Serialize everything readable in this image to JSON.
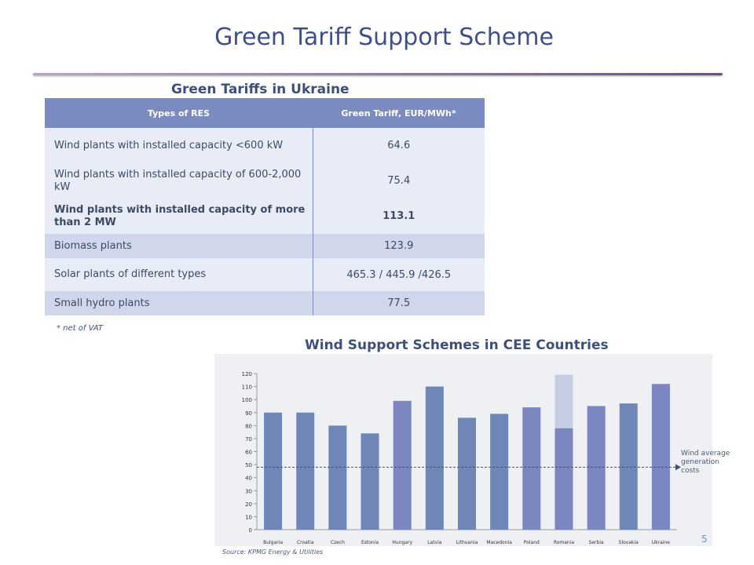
{
  "slide": {
    "title": "Green Tariff Support Scheme",
    "page_number": "5"
  },
  "table": {
    "title": "Green Tariffs in Ukraine",
    "headers": [
      "Types of RES",
      "Green Tariff, EUR/MWh*"
    ],
    "rows": [
      {
        "type": "Wind plants with installed capacity <600 kW",
        "tariff": "64.6"
      },
      {
        "type": "Wind plants with installed capacity of 600-2,000 kW",
        "tariff": "75.4"
      },
      {
        "type": "Wind plants with installed capacity of more than 2 MW",
        "tariff": "113.1"
      },
      {
        "type": "Biomass plants",
        "tariff": "123.9"
      },
      {
        "type": "Solar plants of different types",
        "tariff": "465.3 / 445.9 /426.5"
      },
      {
        "type": "Small hydro plants",
        "tariff": "77.5"
      }
    ],
    "footnote": "* net of VAT"
  },
  "chart_data": {
    "type": "bar",
    "title": "Wind Support Schemes in CEE Countries",
    "categories": [
      "Bulgaria",
      "Croatia",
      "Czech",
      "Estonia",
      "Hungary",
      "Latvia",
      "Lithuania",
      "Macedonia",
      "Poland",
      "Romania",
      "Serbia",
      "Slovakia",
      "Ukraine"
    ],
    "series": [
      {
        "values": [
          90,
          90,
          80,
          74,
          99,
          110,
          86,
          89,
          94,
          78,
          95,
          97,
          112
        ]
      },
      {
        "values": [
          0,
          0,
          0,
          0,
          0,
          0,
          0,
          0,
          0,
          41,
          0,
          0,
          0
        ]
      }
    ],
    "ylim": [
      0,
      120
    ],
    "yticks": [
      0,
      10,
      20,
      30,
      40,
      50,
      60,
      70,
      80,
      90,
      100,
      110,
      120
    ],
    "reference_line": {
      "value": 48,
      "label": "Wind average generation costs"
    },
    "grid": false,
    "colors": {
      "bar": "#6f86b6",
      "bar_alt": "#7b86c0",
      "stack": "#c5cde2",
      "reference": "#3f4f7a"
    },
    "source": "Source: KPMG Energy & Utilities"
  }
}
